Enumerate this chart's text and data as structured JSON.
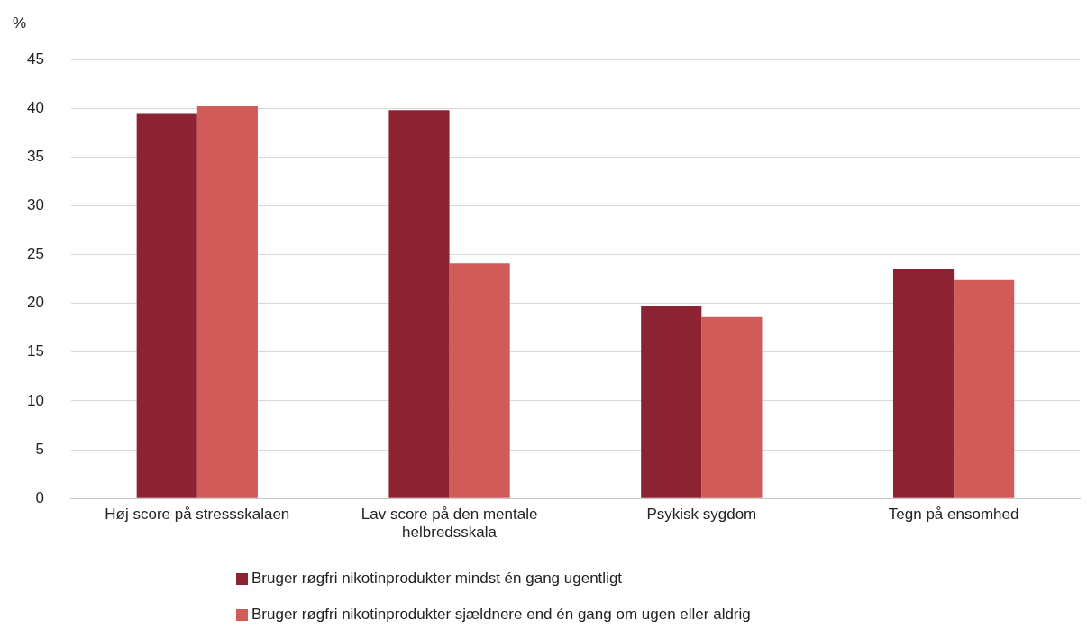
{
  "chart_data": {
    "type": "bar",
    "ylabel": "%",
    "categories": [
      "Høj score på stressskalaen",
      "Lav score på den mentale helbredsskala",
      "Psykisk sygdom",
      "Tegn på ensomhed"
    ],
    "series": [
      {
        "name": "Bruger røgfri nikotinprodukter mindst én gang ugentligt",
        "color": "#8b2332",
        "values": [
          39.5,
          39.8,
          19.7,
          23.5
        ]
      },
      {
        "name": "Bruger røgfri nikotinprodukter sjældnere end én gang om ugen eller aldrig",
        "color": "#d05b58",
        "values": [
          40.2,
          24.1,
          18.6,
          22.4
        ]
      }
    ],
    "ylim": [
      0,
      45
    ],
    "yticks": [
      0,
      5,
      10,
      15,
      20,
      25,
      30,
      35,
      40,
      45
    ],
    "grid": "y",
    "legend": "bottom"
  }
}
